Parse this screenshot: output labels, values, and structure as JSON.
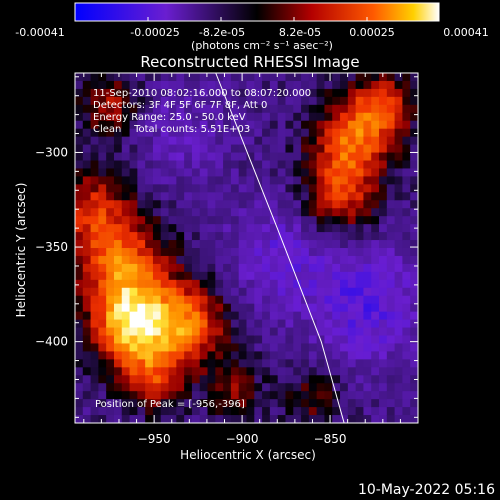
{
  "chart_data": {
    "type": "heatmap",
    "title": "Reconstructed RHESSI Image",
    "xlabel": "Heliocentric X (arcsec)",
    "ylabel": "Heliocentric Y (arcsec)",
    "xlim": [
      -995,
      -800
    ],
    "ylim": [
      -443,
      -258
    ],
    "x_ticks": [
      {
        "value": -950,
        "label": "-950"
      },
      {
        "value": -900,
        "label": "-900"
      },
      {
        "value": -850,
        "label": "-850"
      }
    ],
    "y_ticks": [
      {
        "value": -300,
        "label": "-300"
      },
      {
        "value": -350,
        "label": "-350"
      },
      {
        "value": -400,
        "label": "-400"
      }
    ],
    "colorbar": {
      "range": [
        -0.00041,
        0.00041
      ],
      "tick_labels": [
        "-0.00041",
        "-0.00025",
        "-8.2e-05",
        "8.2e-05",
        "0.00025",
        "0.00041"
      ],
      "units_label": "(photons cm⁻² s⁻¹ asec⁻²)"
    },
    "info_lines": [
      "11-Sep-2010 08:02:16.000 to 08:07:20.000",
      "Detectors: 3F 4F 5F 6F 7F 8F, Att 0",
      "Energy Range: 25.0 - 50.0 keV",
      "Clean    Total counts: 5.51E+03"
    ],
    "peak_label": "Position of Peak = [-956,-396]",
    "peak": {
      "x": -956,
      "y": -396
    },
    "limb_curve": [
      [
        -915,
        -258
      ],
      [
        -880,
        -340
      ],
      [
        -855,
        -400
      ],
      [
        -842,
        -443
      ]
    ],
    "grid": false,
    "sources": [
      {
        "x": -962,
        "y": -392,
        "sigma": 16,
        "amp": 0.00041
      },
      {
        "x": -968,
        "y": -360,
        "sigma": 18,
        "amp": 0.0003
      },
      {
        "x": -930,
        "y": -390,
        "sigma": 15,
        "amp": 0.0003
      },
      {
        "x": -985,
        "y": -330,
        "sigma": 15,
        "amp": 0.00022
      },
      {
        "x": -950,
        "y": -420,
        "sigma": 12,
        "amp": 0.0002
      },
      {
        "x": -880,
        "y": -355,
        "sigma": 20,
        "amp": -0.00012
      },
      {
        "x": -830,
        "y": -380,
        "sigma": 22,
        "amp": -0.00016
      },
      {
        "x": -838,
        "y": -295,
        "sigma": 16,
        "amp": 0.0003
      },
      {
        "x": -820,
        "y": -275,
        "sigma": 12,
        "amp": 0.00025
      },
      {
        "x": -845,
        "y": -325,
        "sigma": 14,
        "amp": 0.00022
      },
      {
        "x": -935,
        "y": -290,
        "sigma": 18,
        "amp": -8e-05
      },
      {
        "x": -975,
        "y": -275,
        "sigma": 12,
        "amp": 0.00018
      },
      {
        "x": -905,
        "y": -425,
        "sigma": 12,
        "amp": 0.00015
      },
      {
        "x": -860,
        "y": -430,
        "sigma": 12,
        "amp": 0.00012
      }
    ]
  },
  "footer": {
    "timestamp": "10-May-2022 05:16"
  }
}
